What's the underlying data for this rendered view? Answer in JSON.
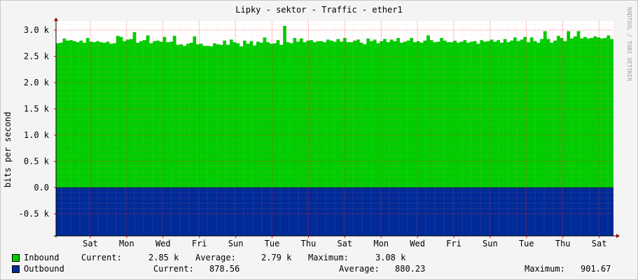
{
  "chart_data": {
    "type": "area",
    "title": "Lipky - sektor - Traffic - ether1",
    "ylabel": "bits per second",
    "watermark": "RRDTOOL / TOBI OETIKER",
    "ylim": [
      -600,
      3100
    ],
    "yticks": [
      "3.0 k",
      "2.5 k",
      "2.0 k",
      "1.5 k",
      "1.0 k",
      "0.5 k",
      "0.0",
      "-0.5 k"
    ],
    "ytick_values": [
      3000,
      2500,
      2000,
      1500,
      1000,
      500,
      0,
      -500
    ],
    "xticks": [
      "Sat",
      "Mon",
      "Wed",
      "Fri",
      "Sun",
      "Tue",
      "Thu",
      "Sat",
      "Mon",
      "Wed",
      "Fri",
      "Sun",
      "Tue",
      "Thu",
      "Sat"
    ],
    "series": [
      {
        "name": "Inbound",
        "color": "#00cc00",
        "values": [
          2750,
          2760,
          2840,
          2800,
          2810,
          2790,
          2770,
          2800,
          2760,
          2850,
          2780,
          2770,
          2790,
          2770,
          2760,
          2780,
          2740,
          2750,
          2890,
          2870,
          2790,
          2820,
          2830,
          2960,
          2760,
          2790,
          2810,
          2900,
          2750,
          2790,
          2800,
          2780,
          2870,
          2770,
          2780,
          2890,
          2720,
          2730,
          2700,
          2740,
          2760,
          2880,
          2730,
          2740,
          2700,
          2700,
          2690,
          2750,
          2730,
          2720,
          2800,
          2720,
          2820,
          2770,
          2750,
          2690,
          2800,
          2740,
          2790,
          2710,
          2780,
          2760,
          2860,
          2770,
          2740,
          2750,
          2810,
          2720,
          3080,
          2770,
          2750,
          2850,
          2780,
          2840,
          2770,
          2800,
          2810,
          2770,
          2790,
          2790,
          2770,
          2820,
          2800,
          2780,
          2830,
          2780,
          2850,
          2770,
          2770,
          2800,
          2820,
          2760,
          2730,
          2840,
          2790,
          2820,
          2750,
          2790,
          2830,
          2770,
          2820,
          2790,
          2850,
          2760,
          2780,
          2800,
          2850,
          2770,
          2790,
          2760,
          2800,
          2900,
          2810,
          2770,
          2780,
          2850,
          2800,
          2770,
          2770,
          2800,
          2760,
          2780,
          2810,
          2760,
          2780,
          2790,
          2740,
          2810,
          2780,
          2790,
          2820,
          2780,
          2810,
          2760,
          2830,
          2770,
          2800,
          2860,
          2790,
          2820,
          2870,
          2770,
          2860,
          2790,
          2760,
          2830,
          2980,
          2830,
          2760,
          2800,
          2890,
          2850,
          2790,
          2980,
          2840,
          2880,
          2980,
          2840,
          2870,
          2840,
          2850,
          2880,
          2860,
          2840,
          2850,
          2900,
          2830
        ]
      },
      {
        "name": "Outbound",
        "color": "#002a97",
        "negative": true
      }
    ]
  },
  "legend": {
    "inbound": {
      "label": "Inbound",
      "current_label": "Current:",
      "current": "2.85 k",
      "average_label": "Average:",
      "average": "2.79 k",
      "maximum_label": "Maximum:",
      "maximum": "3.08 k"
    },
    "outbound": {
      "label": "Outbound",
      "current_label": "Current:",
      "current": "878.56",
      "average_label": "Average:",
      "average": "880.23",
      "maximum_label": "Maximum:",
      "maximum": "901.67"
    }
  }
}
